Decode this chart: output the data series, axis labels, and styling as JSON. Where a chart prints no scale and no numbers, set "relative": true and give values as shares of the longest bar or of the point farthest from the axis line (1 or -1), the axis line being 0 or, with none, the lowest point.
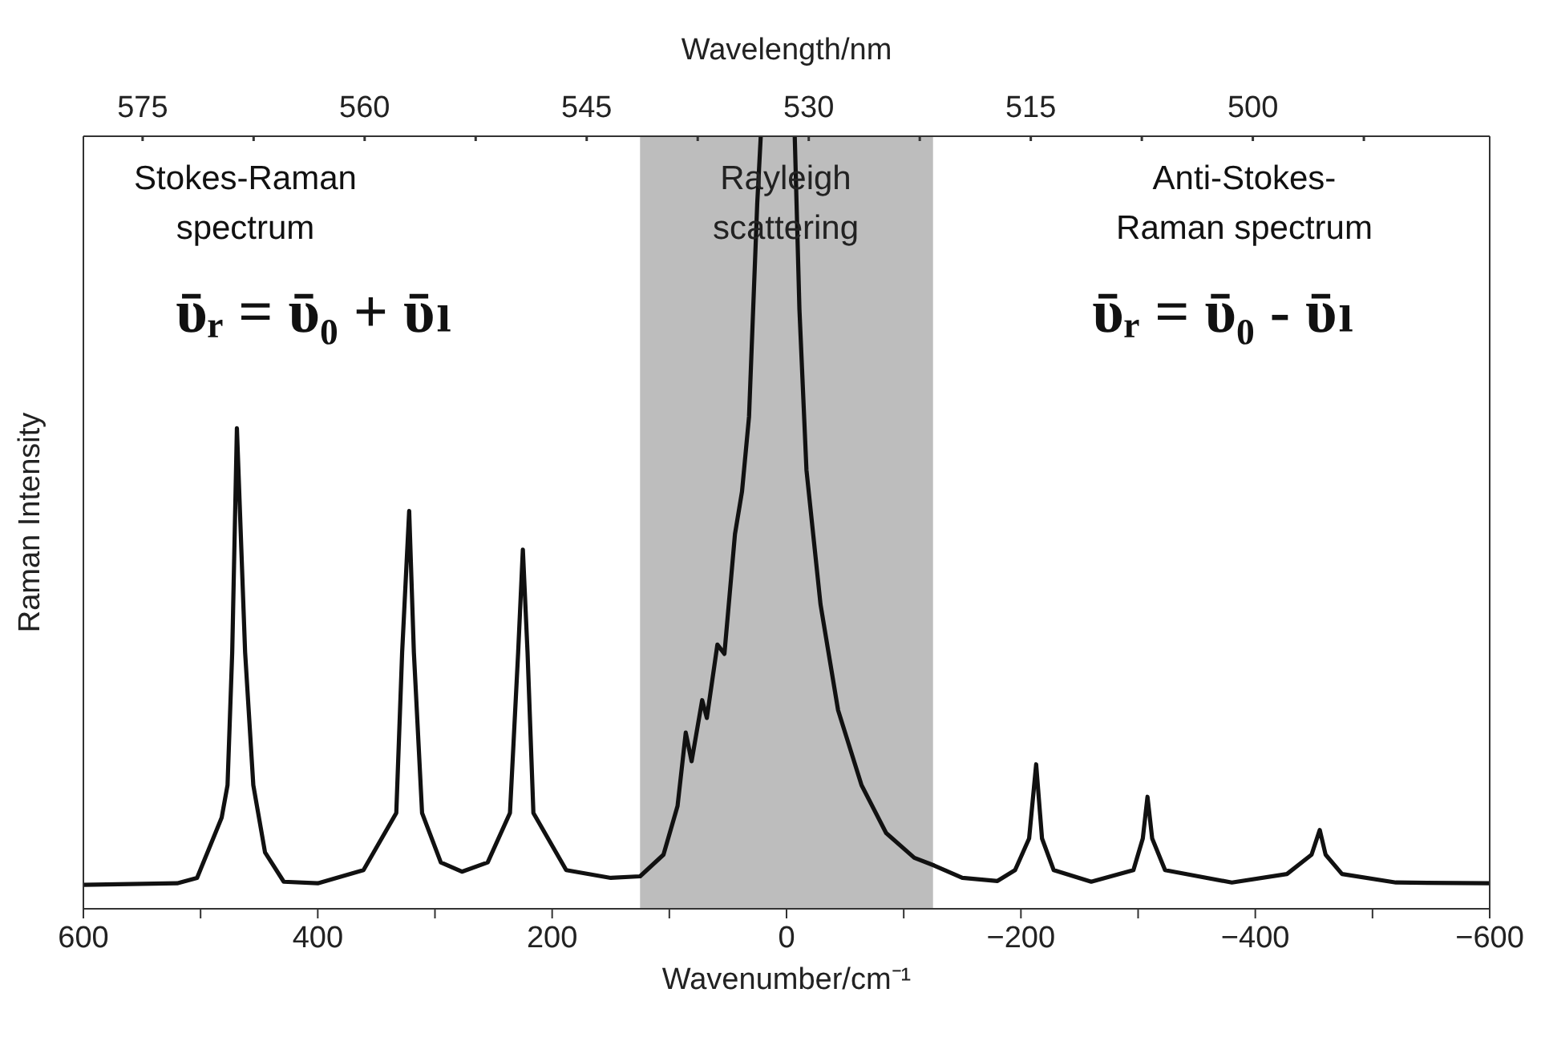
{
  "chart_data": {
    "type": "line",
    "relative": true,
    "xlabel": "Wavenumber/cm⁻¹",
    "ylabel": "Raman Intensity",
    "x2label": "Wavelength/nm",
    "xlim": [
      600,
      -600
    ],
    "xticks": [
      600,
      {
        "value": 500,
        "label": null
      },
      400,
      {
        "value": 300,
        "label": null
      },
      200,
      {
        "value": 100,
        "label": null
      },
      0,
      {
        "value": -100,
        "label": null
      },
      {
        "value": -200,
        "label": "−200"
      },
      {
        "value": -300,
        "label": null
      },
      {
        "value": -400,
        "label": "−400"
      },
      {
        "value": -500,
        "label": null
      },
      {
        "value": -600,
        "label": "−600"
      }
    ],
    "x2lim": [
      579,
      484
    ],
    "x2ticks": [
      575,
      {
        "value": 567.5,
        "label": null
      },
      560,
      {
        "value": 552.5,
        "label": null
      },
      545,
      {
        "value": 537.5,
        "label": null
      },
      530,
      {
        "value": 522.5,
        "label": null
      },
      515,
      {
        "value": 507.5,
        "label": null
      },
      500,
      {
        "value": 492.5,
        "label": null
      }
    ],
    "series": [
      {
        "color": "#111111",
        "x": [
          600,
          520,
          503,
          482,
          477,
          473,
          469,
          462,
          455,
          445,
          429,
          400,
          361,
          333,
          328,
          322,
          318,
          311,
          295,
          277,
          255,
          236,
          229,
          225,
          221,
          216,
          188,
          150,
          125,
          105,
          93,
          86,
          81,
          72,
          68,
          59,
          53,
          44,
          38,
          32,
          25,
          22,
          7,
          -7,
          -11,
          -17,
          -29,
          -44,
          -64,
          -85,
          -109,
          -126,
          -150,
          -180,
          -195,
          -207,
          -213,
          -218,
          -228,
          -260,
          -296,
          -304,
          -308,
          -312,
          -323,
          -380,
          -427,
          -448,
          -455,
          -460,
          -474,
          -520,
          -600
        ],
        "values": [
          0.031,
          0.033,
          0.04,
          0.118,
          0.16,
          0.332,
          0.622,
          0.332,
          0.16,
          0.073,
          0.035,
          0.033,
          0.05,
          0.124,
          0.332,
          0.515,
          0.332,
          0.124,
          0.06,
          0.048,
          0.06,
          0.124,
          0.332,
          0.465,
          0.332,
          0.124,
          0.05,
          0.04,
          0.042,
          0.07,
          0.133,
          0.228,
          0.191,
          0.27,
          0.247,
          0.342,
          0.33,
          0.485,
          0.54,
          0.637,
          0.913,
          1.0,
          null,
          1.0,
          0.776,
          0.568,
          0.394,
          0.257,
          0.16,
          0.098,
          0.066,
          0.056,
          0.04,
          0.036,
          0.05,
          0.091,
          0.187,
          0.091,
          0.05,
          0.035,
          0.05,
          0.091,
          0.145,
          0.091,
          0.05,
          0.034,
          0.045,
          0.07,
          0.102,
          0.07,
          0.045,
          0.034,
          0.033
        ]
      }
    ],
    "bands": [
      {
        "axis": "x",
        "from": 125,
        "to": -125,
        "label": "Rayleigh\nscattering",
        "color": "#bdbdbd"
      }
    ],
    "annotations": [
      "Stokes-Raman\nspectrum",
      "Anti-Stokes-\nRaman spectrum",
      "ῡᵣ = ῡ₀ + ῡₗ",
      "ῡᵣ = ῡ₀ - ῡₗ"
    ]
  }
}
